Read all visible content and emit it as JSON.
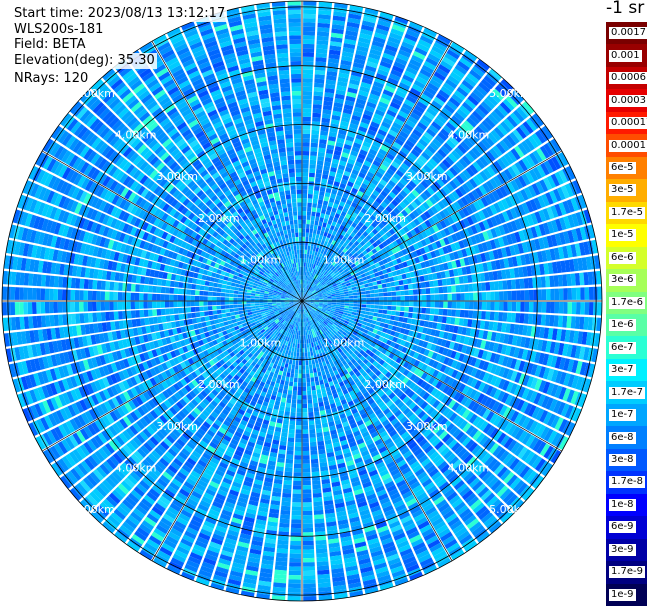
{
  "header": {
    "start_time": "Start time: 2023/08/13 13:12:17",
    "instrument": "WLS200s-181",
    "field": "Field: BETA",
    "elevation": "Elevation(deg): 35.30",
    "nrays": "NRays: 120"
  },
  "units_label": "-1 sr",
  "range_rings": [
    {
      "label": "1.00km"
    },
    {
      "label": "2.00km"
    },
    {
      "label": "3.00km"
    },
    {
      "label": "4.00km"
    },
    {
      "label": "5.00km"
    }
  ],
  "colorbar": {
    "entries": [
      {
        "label": "0.0017",
        "color": "#7a0000"
      },
      {
        "label": "0.001",
        "color": "#990000"
      },
      {
        "label": "0.0006",
        "color": "#c40000"
      },
      {
        "label": "0.0003",
        "color": "#e60000"
      },
      {
        "label": "0.00017",
        "color": "#ff1a00"
      },
      {
        "label": "0.0001",
        "color": "#ff4d00"
      },
      {
        "label": "6e-5",
        "color": "#ff8000"
      },
      {
        "label": "3e-5",
        "color": "#ffad00"
      },
      {
        "label": "1.7e-5",
        "color": "#ffd900"
      },
      {
        "label": "1e-5",
        "color": "#ffff00"
      },
      {
        "label": "6e-6",
        "color": "#d4ff2b"
      },
      {
        "label": "3e-6",
        "color": "#a6ff59"
      },
      {
        "label": "1.7e-6",
        "color": "#80ff80"
      },
      {
        "label": "1e-6",
        "color": "#59ffa6"
      },
      {
        "label": "6e-7",
        "color": "#2bffd4"
      },
      {
        "label": "3e-7",
        "color": "#00f0ff"
      },
      {
        "label": "1.7e-7",
        "color": "#00ccff"
      },
      {
        "label": "1e-7",
        "color": "#00a6ff"
      },
      {
        "label": "6e-8",
        "color": "#0080ff"
      },
      {
        "label": "3e-8",
        "color": "#0059ff"
      },
      {
        "label": "1.7e-8",
        "color": "#0033ff"
      },
      {
        "label": "1e-8",
        "color": "#0000ff"
      },
      {
        "label": "6e-9",
        "color": "#0000d4"
      },
      {
        "label": "3e-9",
        "color": "#0000a6"
      },
      {
        "label": "1.7e-9",
        "color": "#000080"
      },
      {
        "label": "1e-9",
        "color": "#000055"
      }
    ]
  }
}
